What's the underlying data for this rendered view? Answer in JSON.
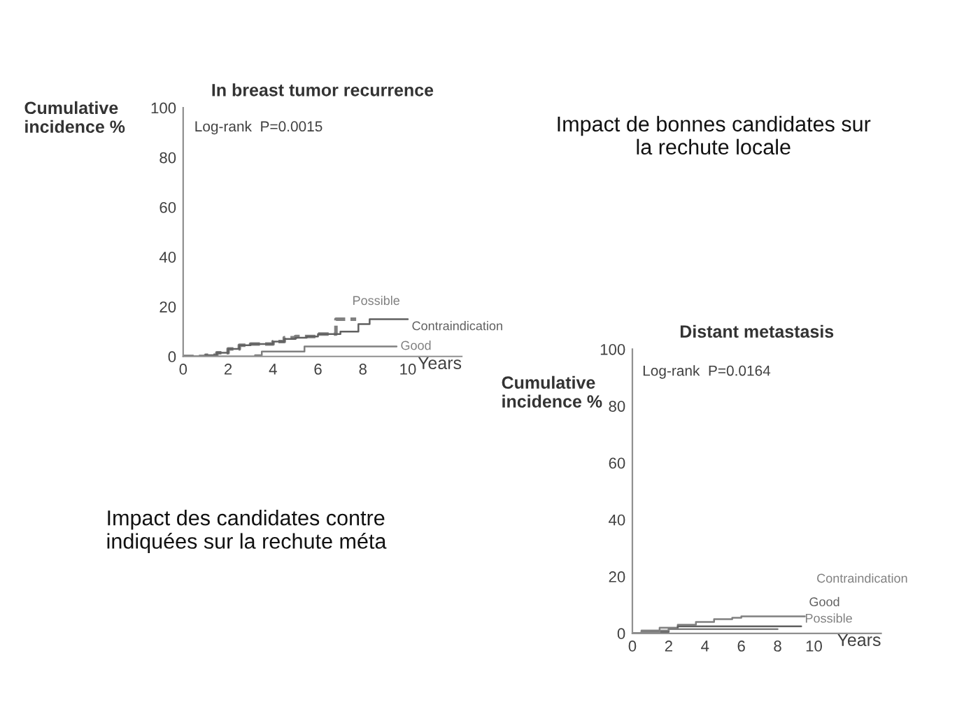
{
  "chart_data": [
    {
      "type": "step",
      "title": "In breast tumor recurrence",
      "ylabel": "Cumulative incidence %",
      "xlabel": "Years",
      "xlim": [
        0,
        12.4
      ],
      "xticks": [
        0,
        2,
        4,
        6,
        8,
        10
      ],
      "ylim": [
        0,
        100
      ],
      "yticks": [
        0,
        20,
        40,
        60,
        80,
        100
      ],
      "grid": false,
      "legend": false,
      "annotations": [
        "Log-rank  P=0.0015",
        "Impact de bonnes candidates sur la rechute locale"
      ],
      "series": [
        {
          "name": "Possible",
          "color": "#808080",
          "line_style": "dashed",
          "x": [
            0,
            1,
            1.5,
            2,
            2.5,
            3,
            4,
            4.5,
            5,
            5.5,
            6,
            6.8,
            7.7
          ],
          "values": [
            0,
            0.5,
            1.5,
            3,
            4.5,
            5,
            6,
            7.5,
            8,
            8,
            9,
            15,
            15
          ]
        },
        {
          "name": "Contraindication",
          "color": "#606060",
          "line_style": "solid",
          "x": [
            0,
            1,
            1.5,
            2,
            2.5,
            3,
            4,
            4.5,
            5,
            5.5,
            6,
            7,
            7.8,
            8.3,
            10
          ],
          "values": [
            0,
            0.5,
            1.5,
            3,
            4.5,
            5,
            6,
            7,
            7.5,
            8,
            9,
            10,
            13,
            15,
            15
          ]
        },
        {
          "name": "Good",
          "color": "#808080",
          "line_style": "solid",
          "x": [
            0,
            3.2,
            3.5,
            5.4,
            9.5
          ],
          "values": [
            0,
            0.5,
            2,
            4,
            4
          ]
        }
      ]
    },
    {
      "type": "step",
      "title": "Distant metastasis",
      "ylabel": "Cumulative incidence %",
      "xlabel": "Years",
      "xlim": [
        0,
        13.7
      ],
      "xticks": [
        0,
        2,
        4,
        6,
        8,
        10
      ],
      "ylim": [
        0,
        100
      ],
      "yticks": [
        0,
        20,
        40,
        60,
        80,
        100
      ],
      "grid": false,
      "legend": false,
      "annotations": [
        "Log-rank  P=0.0164",
        "Impact des candidates contre indiquées sur la rechute méta"
      ],
      "series": [
        {
          "name": "Contraindication",
          "color": "#808080",
          "line_style": "solid",
          "x": [
            0,
            0.5,
            1.5,
            2.5,
            3.5,
            4.5,
            5.5,
            6,
            9.5
          ],
          "values": [
            0,
            1,
            2,
            3,
            4,
            5,
            5.5,
            6,
            6
          ]
        },
        {
          "name": "Good",
          "color": "#606060",
          "line_style": "solid",
          "x": [
            0,
            1,
            2,
            2.5,
            9.3
          ],
          "values": [
            0,
            0.5,
            1.5,
            2.5,
            2.5
          ]
        },
        {
          "name": "Possible",
          "color": "#808080",
          "line_style": "solid",
          "x": [
            0,
            0.5,
            1.5,
            2,
            8
          ],
          "values": [
            0,
            0.5,
            1,
            1.5,
            1.5
          ]
        }
      ]
    }
  ]
}
